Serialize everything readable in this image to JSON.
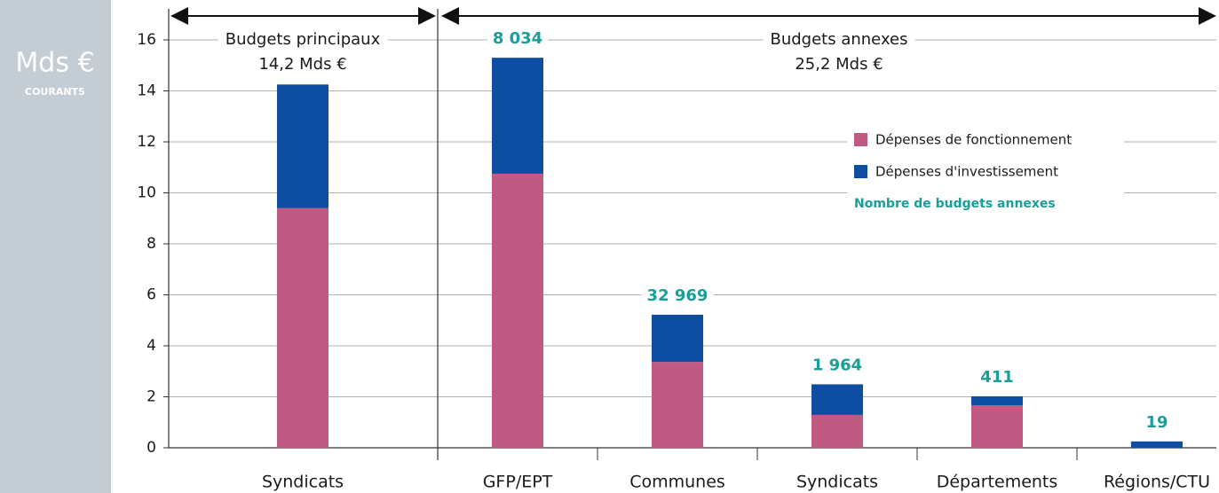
{
  "chart_data": {
    "type": "stacked_bar",
    "y_axis_title": "Mds €",
    "y_axis_subtitle": "COURANTS",
    "categories": [
      "Syndicats",
      "GFP/EPT",
      "Communes",
      "Syndicats",
      "Départements",
      "Régions/CTU"
    ],
    "series": [
      {
        "name": "Dépenses de fonctionnement",
        "color": "#c05a82",
        "values": [
          9.4,
          10.75,
          3.37,
          1.29,
          1.67,
          0
        ]
      },
      {
        "name": "Dépenses d'investissement",
        "color": "#0d4ea3",
        "values": [
          4.85,
          4.55,
          1.85,
          1.2,
          0.35,
          0.25
        ]
      }
    ],
    "budget_counts": {
      "name": "Nombre de budgets annexes",
      "color": "#1a9e98",
      "values": [
        null,
        8034,
        32969,
        1964,
        411,
        19
      ],
      "value_labels": [
        null,
        "8 034",
        "32 969",
        "1 964",
        "411",
        "19"
      ]
    },
    "annotations": [
      {
        "title": "Budgets principaux",
        "text": "14,2 Mds €"
      },
      {
        "title": "Budgets annexes",
        "text": "25,2 Mds €"
      }
    ],
    "ylim": [
      0,
      16
    ],
    "yticks": [
      0,
      2,
      4,
      6,
      8,
      10,
      12,
      14,
      16
    ],
    "grid": true,
    "legend_position": "upper right"
  }
}
